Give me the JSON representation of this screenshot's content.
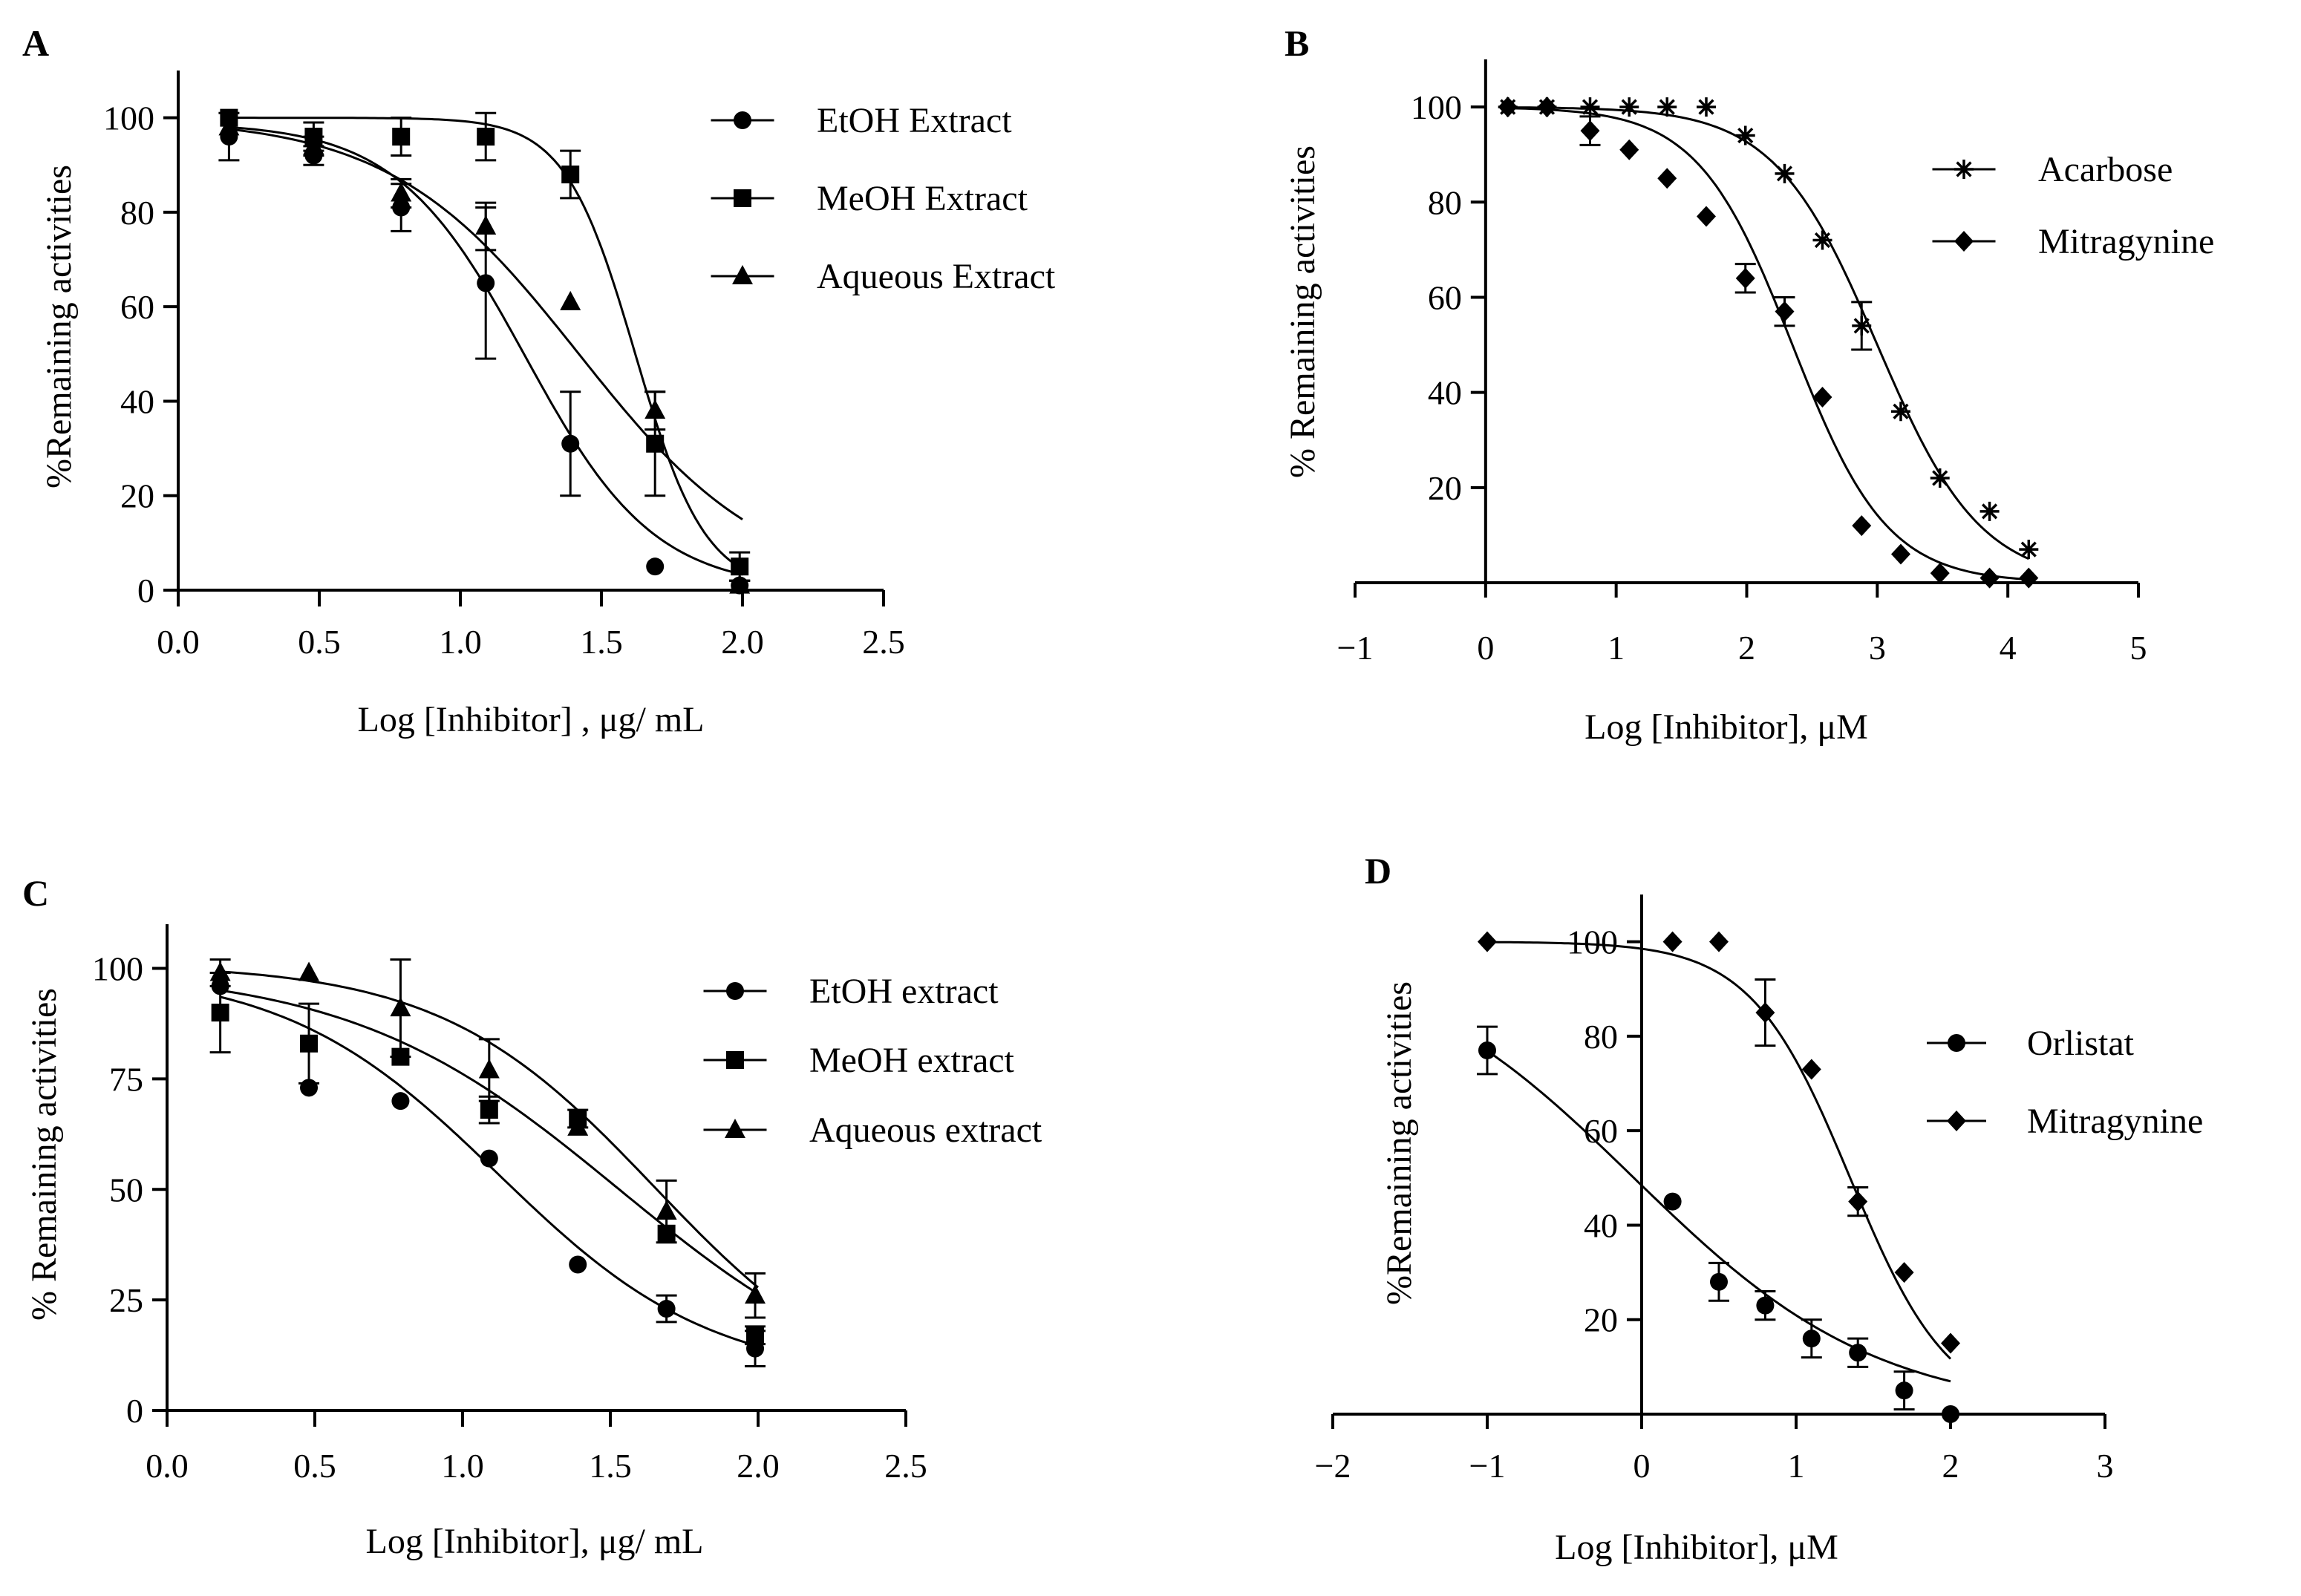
{
  "chart_data": [
    {
      "panel": "A",
      "type": "scatter",
      "title": "",
      "xlabel": "Log [Inhibitor] , μg/ mL",
      "ylabel": "%Remaining activities",
      "xlim": [
        0.0,
        2.5
      ],
      "ylim": [
        0,
        110
      ],
      "xticks": [
        0.0,
        0.5,
        1.0,
        1.5,
        2.0,
        2.5
      ],
      "xtick_labels": [
        "0.0",
        "0.5",
        "1.0",
        "1.5",
        "2.0",
        "2.5"
      ],
      "yticks": [
        0,
        20,
        40,
        60,
        80,
        100
      ],
      "ytick_labels": [
        "0",
        "20",
        "40",
        "60",
        "80",
        "100"
      ],
      "legend_position": "top-right",
      "series": [
        {
          "name": "EtOH Extract",
          "marker": "circle",
          "x": [
            0.18,
            0.48,
            0.79,
            1.09,
            1.39,
            1.69,
            1.99
          ],
          "y": [
            96,
            92,
            81,
            65,
            31,
            5,
            1
          ],
          "err": [
            5,
            2,
            5,
            16,
            11,
            0,
            1
          ],
          "fit": {
            "top": 99,
            "bottom": 0,
            "logIC50": 1.23,
            "hill": 1.9,
            "xmin": 0.18,
            "xmax": 2.0
          }
        },
        {
          "name": "MeOH Extract",
          "marker": "square",
          "x": [
            0.18,
            0.48,
            0.79,
            1.09,
            1.39,
            1.69,
            1.99
          ],
          "y": [
            100,
            96,
            96,
            96,
            88,
            31,
            5
          ],
          "err": [
            0,
            3,
            4,
            5,
            5,
            11,
            3
          ],
          "fit": {
            "top": 100,
            "bottom": 0,
            "logIC50": 1.62,
            "hill": 3.5,
            "xmin": 0.18,
            "xmax": 2.0
          }
        },
        {
          "name": "Aqueous Extract",
          "marker": "triangle",
          "x": [
            0.18,
            0.48,
            0.79,
            1.09,
            1.39,
            1.69,
            1.99
          ],
          "y": [
            98,
            94,
            84,
            77,
            61,
            38,
            1
          ],
          "err": [
            0,
            2,
            3,
            5,
            0,
            4,
            1
          ],
          "fit": {
            "top": 100,
            "bottom": 0,
            "logIC50": 1.42,
            "hill": 1.3,
            "xmin": 0.18,
            "xmax": 2.0
          }
        }
      ]
    },
    {
      "panel": "B",
      "type": "scatter",
      "title": "",
      "xlabel": "Log [Inhibitor], μM",
      "ylabel": "% Remaining activities",
      "xlim": [
        -1,
        5
      ],
      "ylim": [
        0,
        110
      ],
      "xticks": [
        -1,
        0,
        1,
        2,
        3,
        4,
        5
      ],
      "xtick_labels": [
        "−1",
        "0",
        "1",
        "2",
        "3",
        "4",
        "5"
      ],
      "yticks": [
        20,
        40,
        60,
        80,
        100
      ],
      "ytick_labels": [
        "20",
        "40",
        "60",
        "80",
        "100"
      ],
      "legend_position": "top-right",
      "series": [
        {
          "name": "Acarbose",
          "marker": "star",
          "x": [
            0.17,
            0.47,
            0.8,
            1.1,
            1.39,
            1.69,
            1.99,
            2.29,
            2.58,
            2.88,
            3.18,
            3.48,
            3.86,
            4.16
          ],
          "y": [
            100,
            100,
            100,
            100,
            100,
            100,
            94,
            86,
            72,
            54,
            36,
            22,
            15,
            7
          ],
          "err": [
            0,
            0,
            0,
            0,
            0,
            0,
            0,
            0,
            0,
            5,
            0,
            0,
            0,
            0
          ],
          "fit": {
            "top": 100,
            "bottom": 0,
            "logIC50": 3.0,
            "hill": 1.1,
            "xmin": 0.17,
            "xmax": 4.16
          }
        },
        {
          "name": "Mitragynine",
          "marker": "diamond",
          "x": [
            0.17,
            0.47,
            0.8,
            1.1,
            1.39,
            1.69,
            1.99,
            2.29,
            2.58,
            2.88,
            3.18,
            3.48,
            3.86,
            4.16
          ],
          "y": [
            100,
            100,
            95,
            91,
            85,
            77,
            64,
            57,
            39,
            12,
            6,
            2,
            1,
            1
          ],
          "err": [
            0,
            0,
            3,
            0,
            0,
            0,
            3,
            3,
            0,
            0,
            0,
            0,
            0,
            0
          ],
          "fit": {
            "top": 100,
            "bottom": 0,
            "logIC50": 2.35,
            "hill": 1.2,
            "xmin": 0.17,
            "xmax": 4.16
          }
        }
      ]
    },
    {
      "panel": "C",
      "type": "scatter",
      "title": "",
      "xlabel": "Log [Inhibitor], μg/ mL",
      "ylabel": "% Remaining activities",
      "xlim": [
        0.0,
        2.5
      ],
      "ylim": [
        0,
        110
      ],
      "xticks": [
        0.0,
        0.5,
        1.0,
        1.5,
        2.0,
        2.5
      ],
      "xtick_labels": [
        "0.0",
        "0.5",
        "1.0",
        "1.5",
        "2.0",
        "2.5"
      ],
      "yticks": [
        0,
        25,
        50,
        75,
        100
      ],
      "ytick_labels": [
        "0",
        "25",
        "50",
        "75",
        "100"
      ],
      "legend_position": "top-right",
      "series": [
        {
          "name": "EtOH extract",
          "marker": "circle",
          "x": [
            0.18,
            0.48,
            0.79,
            1.09,
            1.39,
            1.69,
            1.99
          ],
          "y": [
            96,
            73,
            70,
            57,
            33,
            23,
            14
          ],
          "err": [
            0,
            0,
            0,
            0,
            0,
            3,
            4
          ],
          "fit": {
            "top": 100,
            "bottom": 7,
            "logIC50": 1.12,
            "hill": 1.2,
            "xmin": 0.18,
            "xmax": 2.0
          }
        },
        {
          "name": "MeOH extract",
          "marker": "square",
          "x": [
            0.18,
            0.48,
            0.79,
            1.09,
            1.39,
            1.69,
            1.99
          ],
          "y": [
            90,
            83,
            80,
            68,
            66,
            40,
            17
          ],
          "err": [
            9,
            9,
            0,
            3,
            2,
            0,
            2
          ],
          "fit": {
            "top": 100,
            "bottom": 0,
            "logIC50": 1.53,
            "hill": 0.95,
            "xmin": 0.18,
            "xmax": 2.0
          }
        },
        {
          "name": "Aqueous extract",
          "marker": "triangle",
          "x": [
            0.18,
            0.48,
            0.79,
            1.09,
            1.39,
            1.69,
            1.99
          ],
          "y": [
            99,
            99,
            91,
            77,
            64,
            45,
            26
          ],
          "err": [
            3,
            0,
            11,
            7,
            0,
            7,
            5
          ],
          "fit": {
            "top": 101,
            "bottom": 0,
            "logIC50": 1.65,
            "hill": 1.2,
            "xmin": 0.18,
            "xmax": 2.0
          }
        }
      ]
    },
    {
      "panel": "D",
      "type": "scatter",
      "title": "",
      "xlabel": "Log [Inhibitor], μM",
      "ylabel": "%Remaining activities",
      "xlim": [
        -2,
        3
      ],
      "ylim": [
        0,
        110
      ],
      "xticks": [
        -2,
        -1,
        0,
        1,
        2,
        3
      ],
      "xtick_labels": [
        "−2",
        "−1",
        "0",
        "1",
        "2",
        "3"
      ],
      "yticks": [
        20,
        40,
        60,
        80,
        100
      ],
      "ytick_labels": [
        "20",
        "40",
        "60",
        "80",
        "100"
      ],
      "legend_position": "right",
      "series": [
        {
          "name": "Orlistat",
          "marker": "circle",
          "x": [
            -1.0,
            0.2,
            0.5,
            0.8,
            1.1,
            1.4,
            1.7,
            2.0
          ],
          "y": [
            77,
            45,
            28,
            23,
            16,
            13,
            5,
            0
          ],
          "err": [
            5,
            0,
            4,
            3,
            4,
            3,
            4,
            0
          ],
          "fit": {
            "top": 100,
            "bottom": 0,
            "logIC50": -0.05,
            "hill": 0.55,
            "xmin": -1.0,
            "xmax": 2.0
          }
        },
        {
          "name": "Mitragynine",
          "marker": "diamond",
          "x": [
            -1.0,
            0.2,
            0.5,
            0.8,
            1.1,
            1.4,
            1.7,
            2.0
          ],
          "y": [
            100,
            100,
            100,
            85,
            73,
            45,
            30,
            15
          ],
          "err": [
            0,
            0,
            0,
            7,
            0,
            3,
            0,
            0
          ],
          "fit": {
            "top": 100,
            "bottom": 0,
            "logIC50": 1.35,
            "hill": 1.35,
            "xmin": -1.0,
            "xmax": 2.0
          }
        }
      ]
    }
  ]
}
